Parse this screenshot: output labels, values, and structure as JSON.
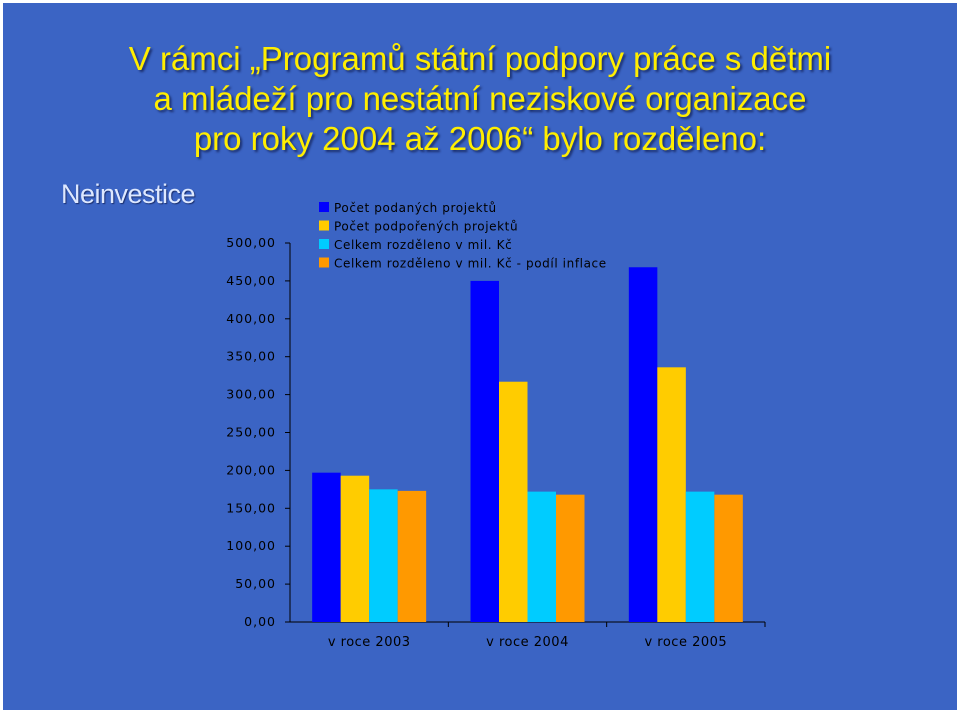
{
  "title_lines": [
    "V rámci „Programů státní podpory práce s dětmi",
    "a mládeží pro  nestátní neziskové organizace",
    "pro roky 2004 až 2006“ bylo rozděleno:"
  ],
  "section_label": "Neinvestice",
  "colors": {
    "background": "#3b64c4",
    "title": "#ffee00"
  },
  "chart_data": {
    "type": "bar",
    "categories": [
      "v roce 2003",
      "v roce 2004",
      "v roce 2005"
    ],
    "series": [
      {
        "name": "Počet podaných projektů",
        "color": "#0000ff",
        "values": [
          197,
          450,
          468
        ]
      },
      {
        "name": "Počet podpořených projektů",
        "color": "#ffcc00",
        "values": [
          193,
          317,
          336
        ]
      },
      {
        "name": "Celkem rozděleno v mil. Kč",
        "color": "#00ccff",
        "values": [
          175,
          172,
          172
        ]
      },
      {
        "name": "Celkem rozděleno v mil. Kč - podíl inflace",
        "color": "#ff9900",
        "values": [
          173,
          168,
          168
        ]
      }
    ],
    "yticks": [
      "0,00",
      "50,00",
      "100,00",
      "150,00",
      "200,00",
      "250,00",
      "300,00",
      "350,00",
      "400,00",
      "450,00",
      "500,00"
    ],
    "ylim": [
      0,
      500
    ],
    "legend_position": "top",
    "grid": false
  }
}
